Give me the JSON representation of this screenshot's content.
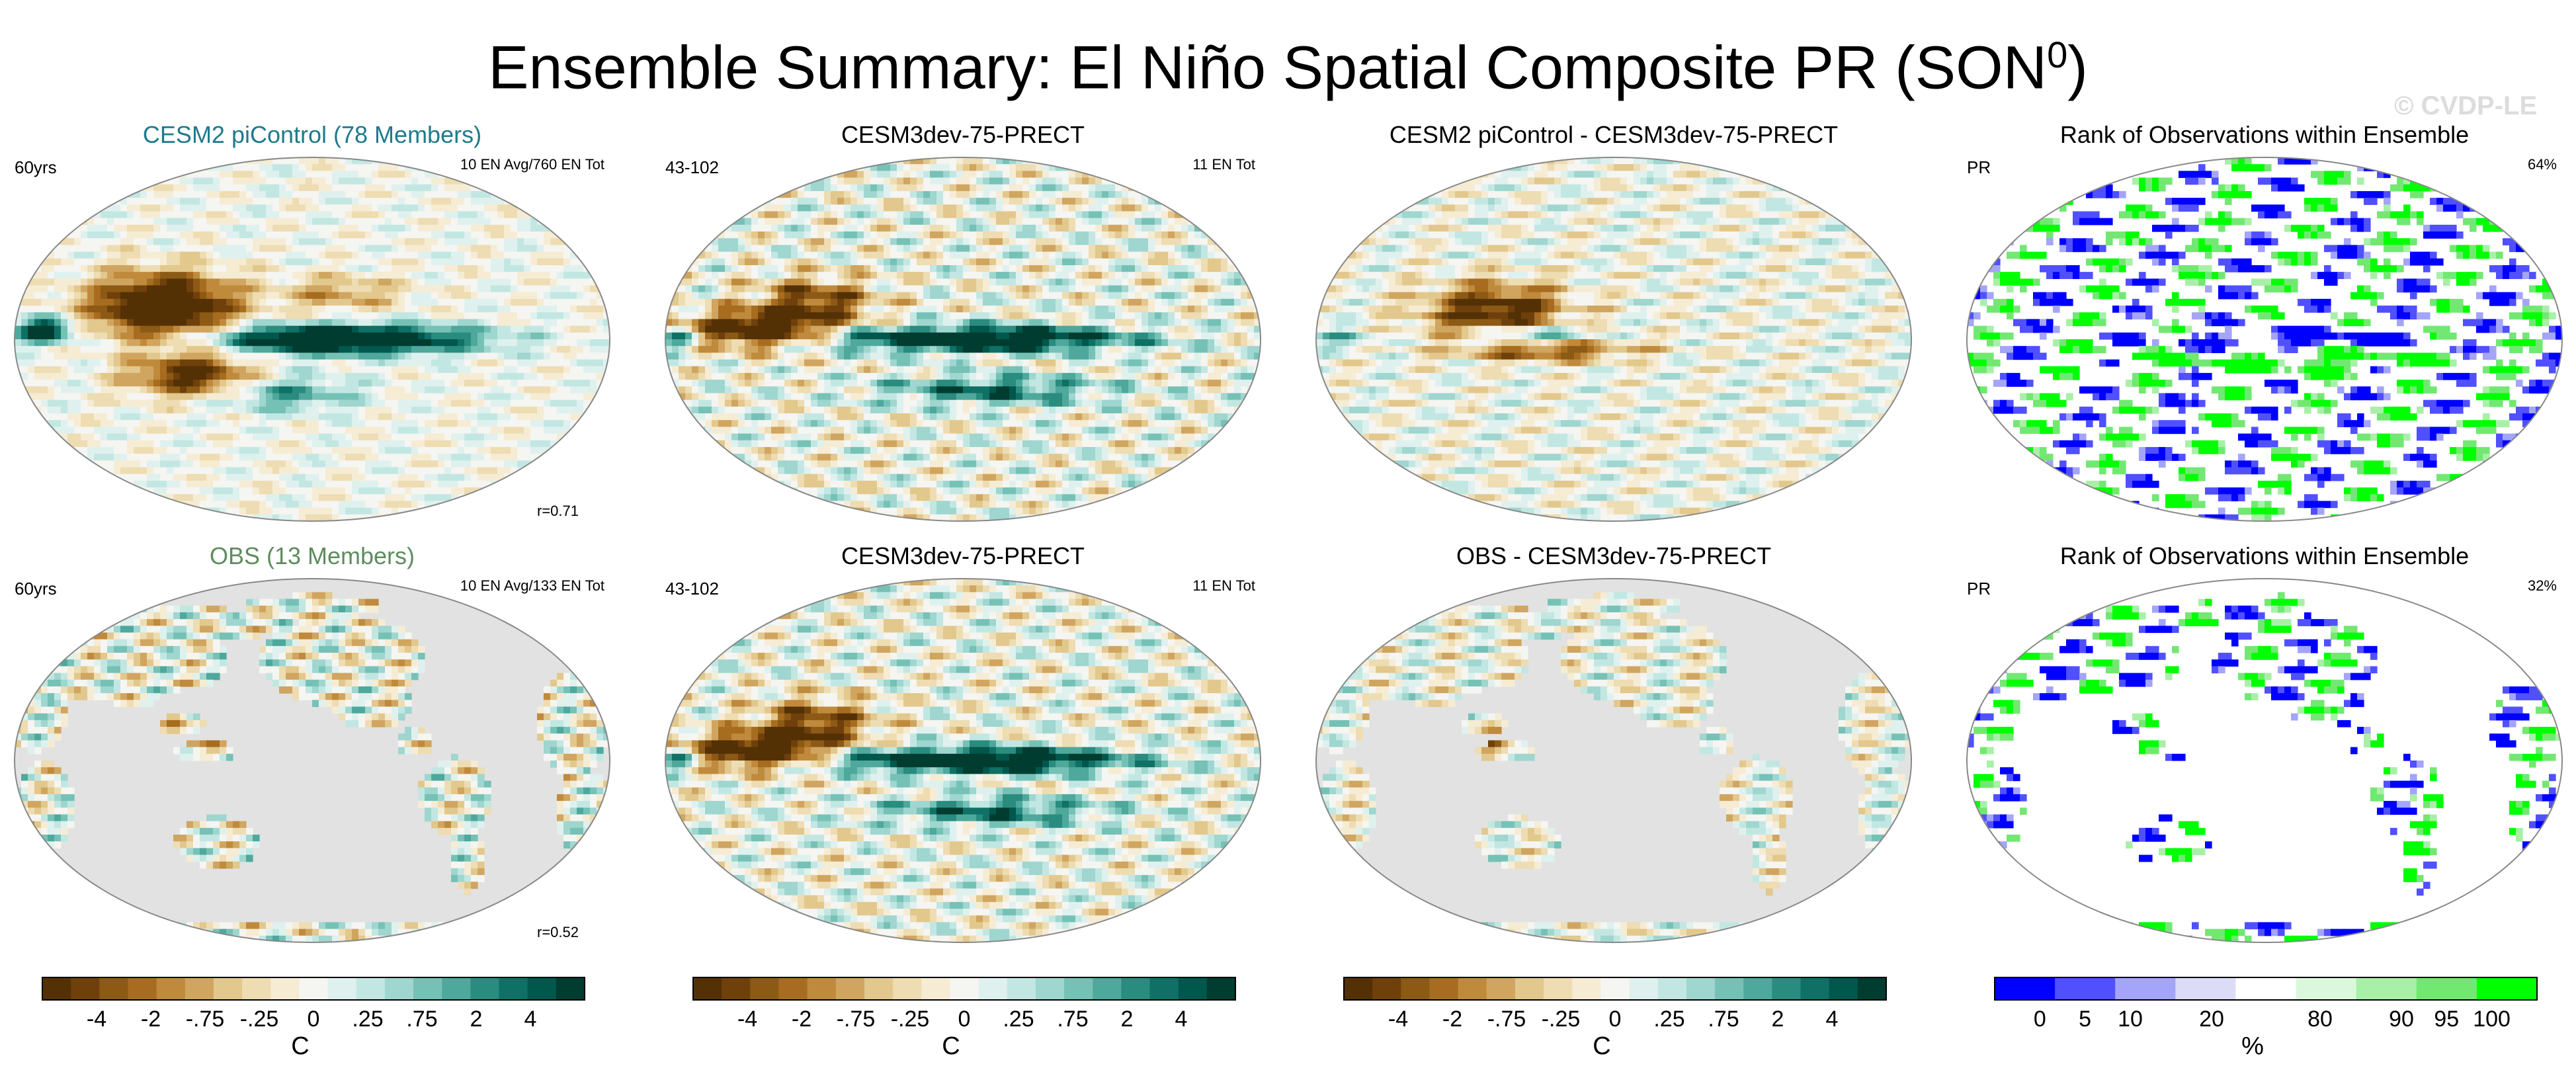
{
  "title": {
    "main": "Ensemble Summary: El Niño Spatial Composite PR (SON",
    "sup": "0",
    "close": ")"
  },
  "watermark": "© CVDP-LE",
  "colors": {
    "brown_teal": [
      "#543005",
      "#6f400b",
      "#8c5a14",
      "#a76c20",
      "#c08a3c",
      "#d0a560",
      "#e2c88c",
      "#eedcb2",
      "#f6ecd4",
      "#f5f5f2",
      "#dff1ee",
      "#c2e7e2",
      "#9fd6cf",
      "#76c1b6",
      "#4ea89c",
      "#2a8b7f",
      "#0f7065",
      "#00574c",
      "#003c30"
    ],
    "rank": [
      "#0000ff",
      "#5050ff",
      "#a4a4f8",
      "#dcdcf6",
      "#ffffff",
      "#dcf8dc",
      "#a8f0a8",
      "#72e872",
      "#00ff00"
    ]
  },
  "chart_data": [
    {
      "type": "heatmap",
      "title": "CESM2 piControl (78 Members)",
      "title_color": "#1f7a8c",
      "left_label": "60yrs",
      "right_label": "10 EN Avg/760 EN Tot",
      "corner_label": "r=0.71",
      "field": "full_tropics_strong"
    },
    {
      "type": "heatmap",
      "title": "CESM3dev-75-PRECT",
      "left_label": "43-102",
      "right_label": "11 EN Tot",
      "field": "full_tropics"
    },
    {
      "type": "heatmap",
      "title": "CESM2 piControl - CESM3dev-75-PRECT",
      "field": "diff"
    },
    {
      "type": "heatmap",
      "title": "Rank of Observations within Ensemble",
      "left_label": "PR",
      "right_label": "64%",
      "field": "rank_full"
    },
    {
      "type": "heatmap",
      "title": "OBS (13 Members)",
      "title_color": "#5e8c5e",
      "left_label": "60yrs",
      "right_label": "10 EN Avg/133 EN Tot",
      "corner_label": "r=0.52",
      "field": "land_only"
    },
    {
      "type": "heatmap",
      "title": "CESM3dev-75-PRECT",
      "left_label": "43-102",
      "right_label": "11 EN Tot",
      "field": "full_tropics"
    },
    {
      "type": "heatmap",
      "title": "OBS - CESM3dev-75-PRECT",
      "field": "land_diff"
    },
    {
      "type": "heatmap",
      "title": "Rank of Observations within Ensemble",
      "left_label": "PR",
      "right_label": "32%",
      "field": "rank_land"
    }
  ],
  "colorbars": [
    {
      "ticks": [
        "-4",
        "-2",
        "-.75",
        "-.25",
        "0",
        ".25",
        ".75",
        "2",
        "4"
      ],
      "unit": "C",
      "palette": "brown_teal"
    },
    {
      "ticks": [
        "-4",
        "-2",
        "-.75",
        "-.25",
        "0",
        ".25",
        ".75",
        "2",
        "4"
      ],
      "unit": "C",
      "palette": "brown_teal"
    },
    {
      "ticks": [
        "-4",
        "-2",
        "-.75",
        "-.25",
        "0",
        ".25",
        ".75",
        "2",
        "4"
      ],
      "unit": "C",
      "palette": "brown_teal"
    },
    {
      "ticks": [
        "0",
        "5",
        "10",
        "20",
        "80",
        "90",
        "95",
        "100"
      ],
      "unit": "%",
      "palette": "rank"
    }
  ]
}
